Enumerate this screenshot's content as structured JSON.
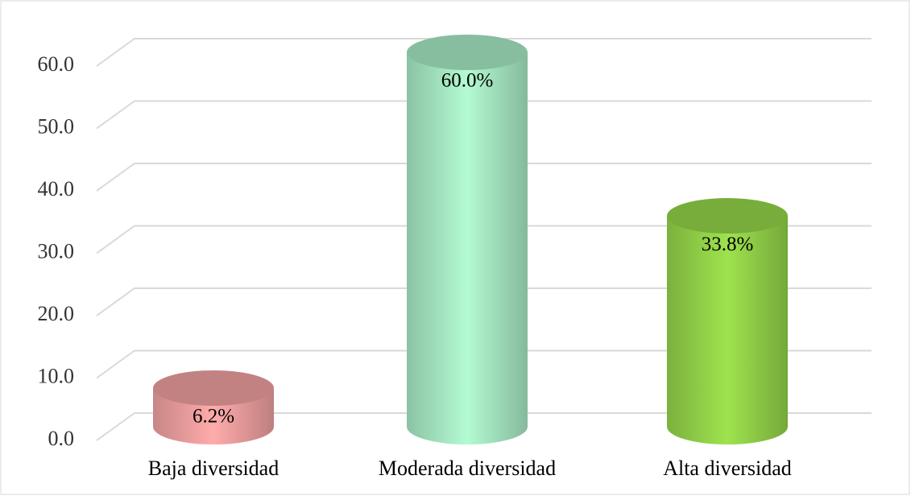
{
  "chart_data": {
    "type": "cylinder",
    "categories": [
      "Baja diversidad",
      "Moderada diversidad",
      "Alta diversidad"
    ],
    "values": [
      6.2,
      60.0,
      33.8
    ],
    "value_labels": [
      "6.2%",
      "60.0%",
      "33.8%"
    ],
    "colors": [
      "#f4a3a3",
      "#aaeec8",
      "#96d84a"
    ],
    "ylim": [
      0,
      60
    ],
    "yticks": [
      {
        "value": 0,
        "label": "0.0"
      },
      {
        "value": 10,
        "label": "10.0"
      },
      {
        "value": 20,
        "label": "20.0"
      },
      {
        "value": 30,
        "label": "30.0"
      },
      {
        "value": 40,
        "label": "40.0"
      },
      {
        "value": 50,
        "label": "50.0"
      },
      {
        "value": 60,
        "label": "60.0"
      }
    ],
    "grid": true
  }
}
